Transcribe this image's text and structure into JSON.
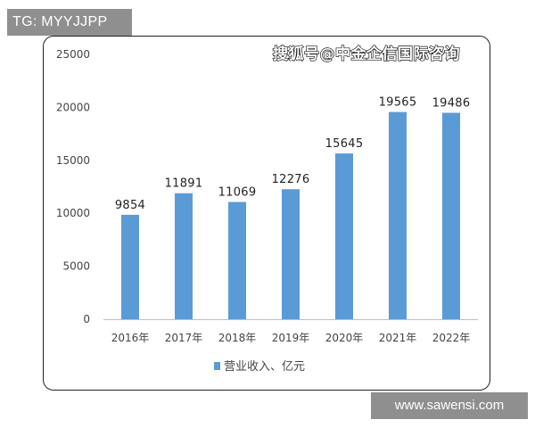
{
  "badges": {
    "telegram": "TG: MYYJJPP",
    "site": "www.sawensi.com"
  },
  "watermark": {
    "source": "搜狐号@中金企信国际咨询"
  },
  "colors": {
    "bar": "#5b9bd5",
    "axis": "#bfbfbf",
    "frame": "#222222"
  },
  "chart_data": {
    "type": "bar",
    "categories": [
      "2016年",
      "2017年",
      "2018年",
      "2019年",
      "2020年",
      "2021年",
      "2022年"
    ],
    "series": [
      {
        "name": "营业收入、亿元",
        "values": [
          9854,
          11891,
          11069,
          12276,
          15645,
          19565,
          19486
        ]
      }
    ],
    "data_labels": [
      "9854",
      "11891",
      "11069",
      "12276",
      "15645",
      "19565",
      "19486"
    ],
    "yticks": [
      0,
      5000,
      10000,
      15000,
      20000,
      25000
    ],
    "ylim": [
      0,
      25000
    ],
    "grid": false,
    "legend": "bottom-left",
    "title": "",
    "xlabel": "",
    "ylabel": ""
  }
}
